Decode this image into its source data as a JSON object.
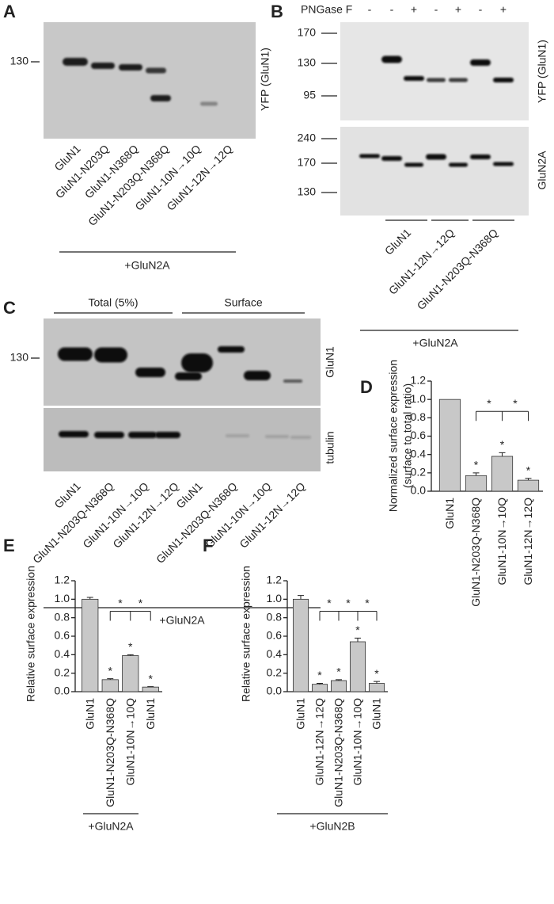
{
  "panel_a": {
    "label": "A",
    "marker": "130",
    "side_label": "YFP (GluN1)",
    "lanes": [
      "GluN1",
      "GluN1-N203Q",
      "GluN1-N368Q",
      "GluN1-N203Q-N368Q",
      "GluN1-10N→10Q",
      "GluN1-12N→12Q"
    ],
    "group": "+GluN2A"
  },
  "panel_b": {
    "label": "B",
    "treatment": "PNGase F",
    "treatment_signs": [
      "-",
      "-",
      "+",
      "-",
      "+",
      "-",
      "+"
    ],
    "top_markers": [
      "170",
      "130",
      "95"
    ],
    "bottom_markers": [
      "240",
      "170",
      "130"
    ],
    "top_side_label": "YFP (GluN1)",
    "bottom_side_label": "GluN2A",
    "groups": [
      "GluN1",
      "GluN1-12N→12Q",
      "GluN1-N203Q-N368Q"
    ],
    "group": "+GluN2A"
  },
  "panel_c": {
    "label": "C",
    "headers": [
      "Total (5%)",
      "Surface"
    ],
    "marker": "130",
    "side_labels": [
      "GluN1",
      "tubulin"
    ],
    "lanes": [
      "GluN1",
      "GluN1-N203Q-N368Q",
      "GluN1-10N→10Q",
      "GluN1-12N→12Q",
      "GluN1",
      "GluN1-N203Q-N368Q",
      "GluN1-10N→10Q",
      "GluN1-12N→12Q"
    ],
    "group": "+GluN2A"
  },
  "chart_data": [
    {
      "type": "bar",
      "panel_label": "D",
      "y_label": "Normalized surface expression",
      "y_label_sub": "(surface to total ratio)",
      "categories": [
        "GluN1",
        "GluN1-N203Q-N368Q",
        "GluN1-10N→10Q",
        "GluN1-12N→12Q"
      ],
      "values": [
        1.0,
        0.17,
        0.38,
        0.12
      ],
      "errors": [
        null,
        0.03,
        0.04,
        0.02
      ],
      "color": "#c8c8c8",
      "ylim": [
        0,
        1.2
      ],
      "yticks": [
        {
          "value": 0,
          "label": "0.0"
        },
        0.2,
        0.4,
        0.6,
        0.8,
        {
          "value": 1,
          "label": "1.0"
        },
        1.2
      ],
      "bar_annotations": [
        null,
        "*",
        "*",
        "*"
      ],
      "comparison_annotations": [
        "*",
        "*"
      ]
    },
    {
      "type": "bar",
      "panel_label": "E",
      "y_label": "Relative surface expression",
      "categories": [
        "GluN1",
        "GluN1-N203Q-N368Q",
        "GluN1-10N→10Q",
        "GluN1"
      ],
      "values": [
        1.0,
        0.13,
        0.39,
        0.05
      ],
      "errors": [
        0.02,
        0.01,
        0.01,
        0.005
      ],
      "color": "#c8c8c8",
      "ylim": [
        0,
        1.2
      ],
      "yticks": [
        {
          "value": 0,
          "label": "0.0"
        },
        0.2,
        0.4,
        0.6,
        0.8,
        {
          "value": 1,
          "label": "1.0"
        },
        1.2
      ],
      "bar_annotations": [
        null,
        "*",
        "*",
        "*"
      ],
      "comparison_annotations": [
        "*",
        "*"
      ],
      "group_label": "+GluN2A"
    },
    {
      "type": "bar",
      "panel_label": "F",
      "y_label": "Relative surface expression",
      "categories": [
        "GluN1",
        "GluN1-12N→12Q",
        "GluN1-N203Q-N368Q",
        "GluN1-10N→10Q",
        "GluN1"
      ],
      "values": [
        1.0,
        0.08,
        0.12,
        0.54,
        0.09
      ],
      "errors": [
        0.04,
        0.01,
        0.01,
        0.04,
        0.02
      ],
      "color": "#c8c8c8",
      "ylim": [
        0,
        1.2
      ],
      "yticks": [
        {
          "value": 0,
          "label": "0.0"
        },
        0.2,
        0.4,
        0.6,
        0.8,
        {
          "value": 1,
          "label": "1.0"
        },
        1.2
      ],
      "bar_annotations": [
        null,
        "*",
        "*",
        "*",
        "*"
      ],
      "comparison_annotations": [
        "*",
        "*",
        "*"
      ],
      "group_label": "+GluN2B"
    }
  ]
}
